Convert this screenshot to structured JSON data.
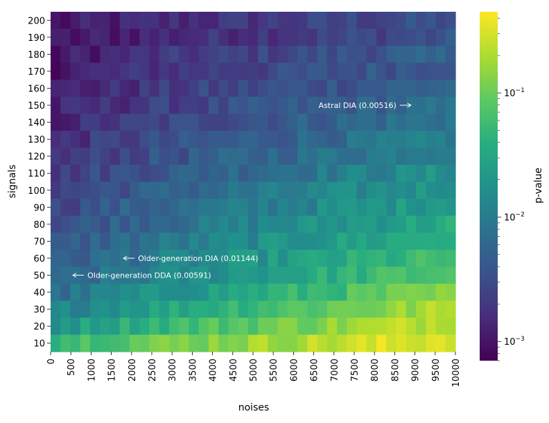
{
  "chart_data": {
    "type": "heatmap",
    "xlabel": "noises",
    "ylabel": "signals",
    "colorbar_label": "p-value",
    "colormap": "viridis",
    "color_scale": "log",
    "color_range": [
      0.0007,
      0.45
    ],
    "x_tick_labels": [
      "0",
      "500",
      "1000",
      "1500",
      "2000",
      "2500",
      "3000",
      "3500",
      "4000",
      "4500",
      "5000",
      "5500",
      "6000",
      "6500",
      "7000",
      "7500",
      "8000",
      "8500",
      "9000",
      "9500",
      "10000"
    ],
    "y_tick_labels": [
      "200",
      "190",
      "180",
      "170",
      "160",
      "150",
      "140",
      "130",
      "120",
      "110",
      "100",
      "90",
      "80",
      "70",
      "60",
      "50",
      "40",
      "30",
      "20",
      "10"
    ],
    "colorbar_ticks": [
      {
        "value": 0.1,
        "base": "10",
        "exponent": "−1"
      },
      {
        "value": 0.01,
        "base": "10",
        "exponent": "−2"
      },
      {
        "value": 0.001,
        "base": "10",
        "exponent": "−3"
      }
    ],
    "grid_size": {
      "columns": 41,
      "rows": 20
    },
    "approximate_trend": "p-value increases as signals decrease and noises increase; row p-value ranges (min to max) approx. per signals level",
    "row_pvalue_range": [
      {
        "signals": 200,
        "low": 0.0009,
        "high": 0.0035
      },
      {
        "signals": 190,
        "low": 0.0009,
        "high": 0.0035
      },
      {
        "signals": 180,
        "low": 0.001,
        "high": 0.005
      },
      {
        "signals": 170,
        "low": 0.0011,
        "high": 0.005
      },
      {
        "signals": 160,
        "low": 0.0011,
        "high": 0.006
      },
      {
        "signals": 150,
        "low": 0.0012,
        "high": 0.007
      },
      {
        "signals": 140,
        "low": 0.0013,
        "high": 0.009
      },
      {
        "signals": 130,
        "low": 0.0015,
        "high": 0.011
      },
      {
        "signals": 120,
        "low": 0.0017,
        "high": 0.014
      },
      {
        "signals": 110,
        "low": 0.002,
        "high": 0.018
      },
      {
        "signals": 100,
        "low": 0.0023,
        "high": 0.022
      },
      {
        "signals": 90,
        "low": 0.0026,
        "high": 0.028
      },
      {
        "signals": 80,
        "low": 0.003,
        "high": 0.036
      },
      {
        "signals": 70,
        "low": 0.0035,
        "high": 0.045
      },
      {
        "signals": 60,
        "low": 0.004,
        "high": 0.06
      },
      {
        "signals": 50,
        "low": 0.0045,
        "high": 0.08
      },
      {
        "signals": 40,
        "low": 0.0065,
        "high": 0.12
      },
      {
        "signals": 30,
        "low": 0.011,
        "high": 0.2
      },
      {
        "signals": 20,
        "low": 0.02,
        "high": 0.28
      },
      {
        "signals": 10,
        "low": 0.055,
        "high": 0.38
      }
    ],
    "annotations": [
      {
        "text": "Astral DIA (0.00516)",
        "noises": 8900,
        "signals": 150,
        "arrow": "right"
      },
      {
        "text": "Older-generation DIA (0.01144)",
        "noises": 1800,
        "signals": 60,
        "arrow": "left"
      },
      {
        "text": "Older-generation DDA (0.00591)",
        "noises": 550,
        "signals": 50,
        "arrow": "left"
      }
    ]
  }
}
